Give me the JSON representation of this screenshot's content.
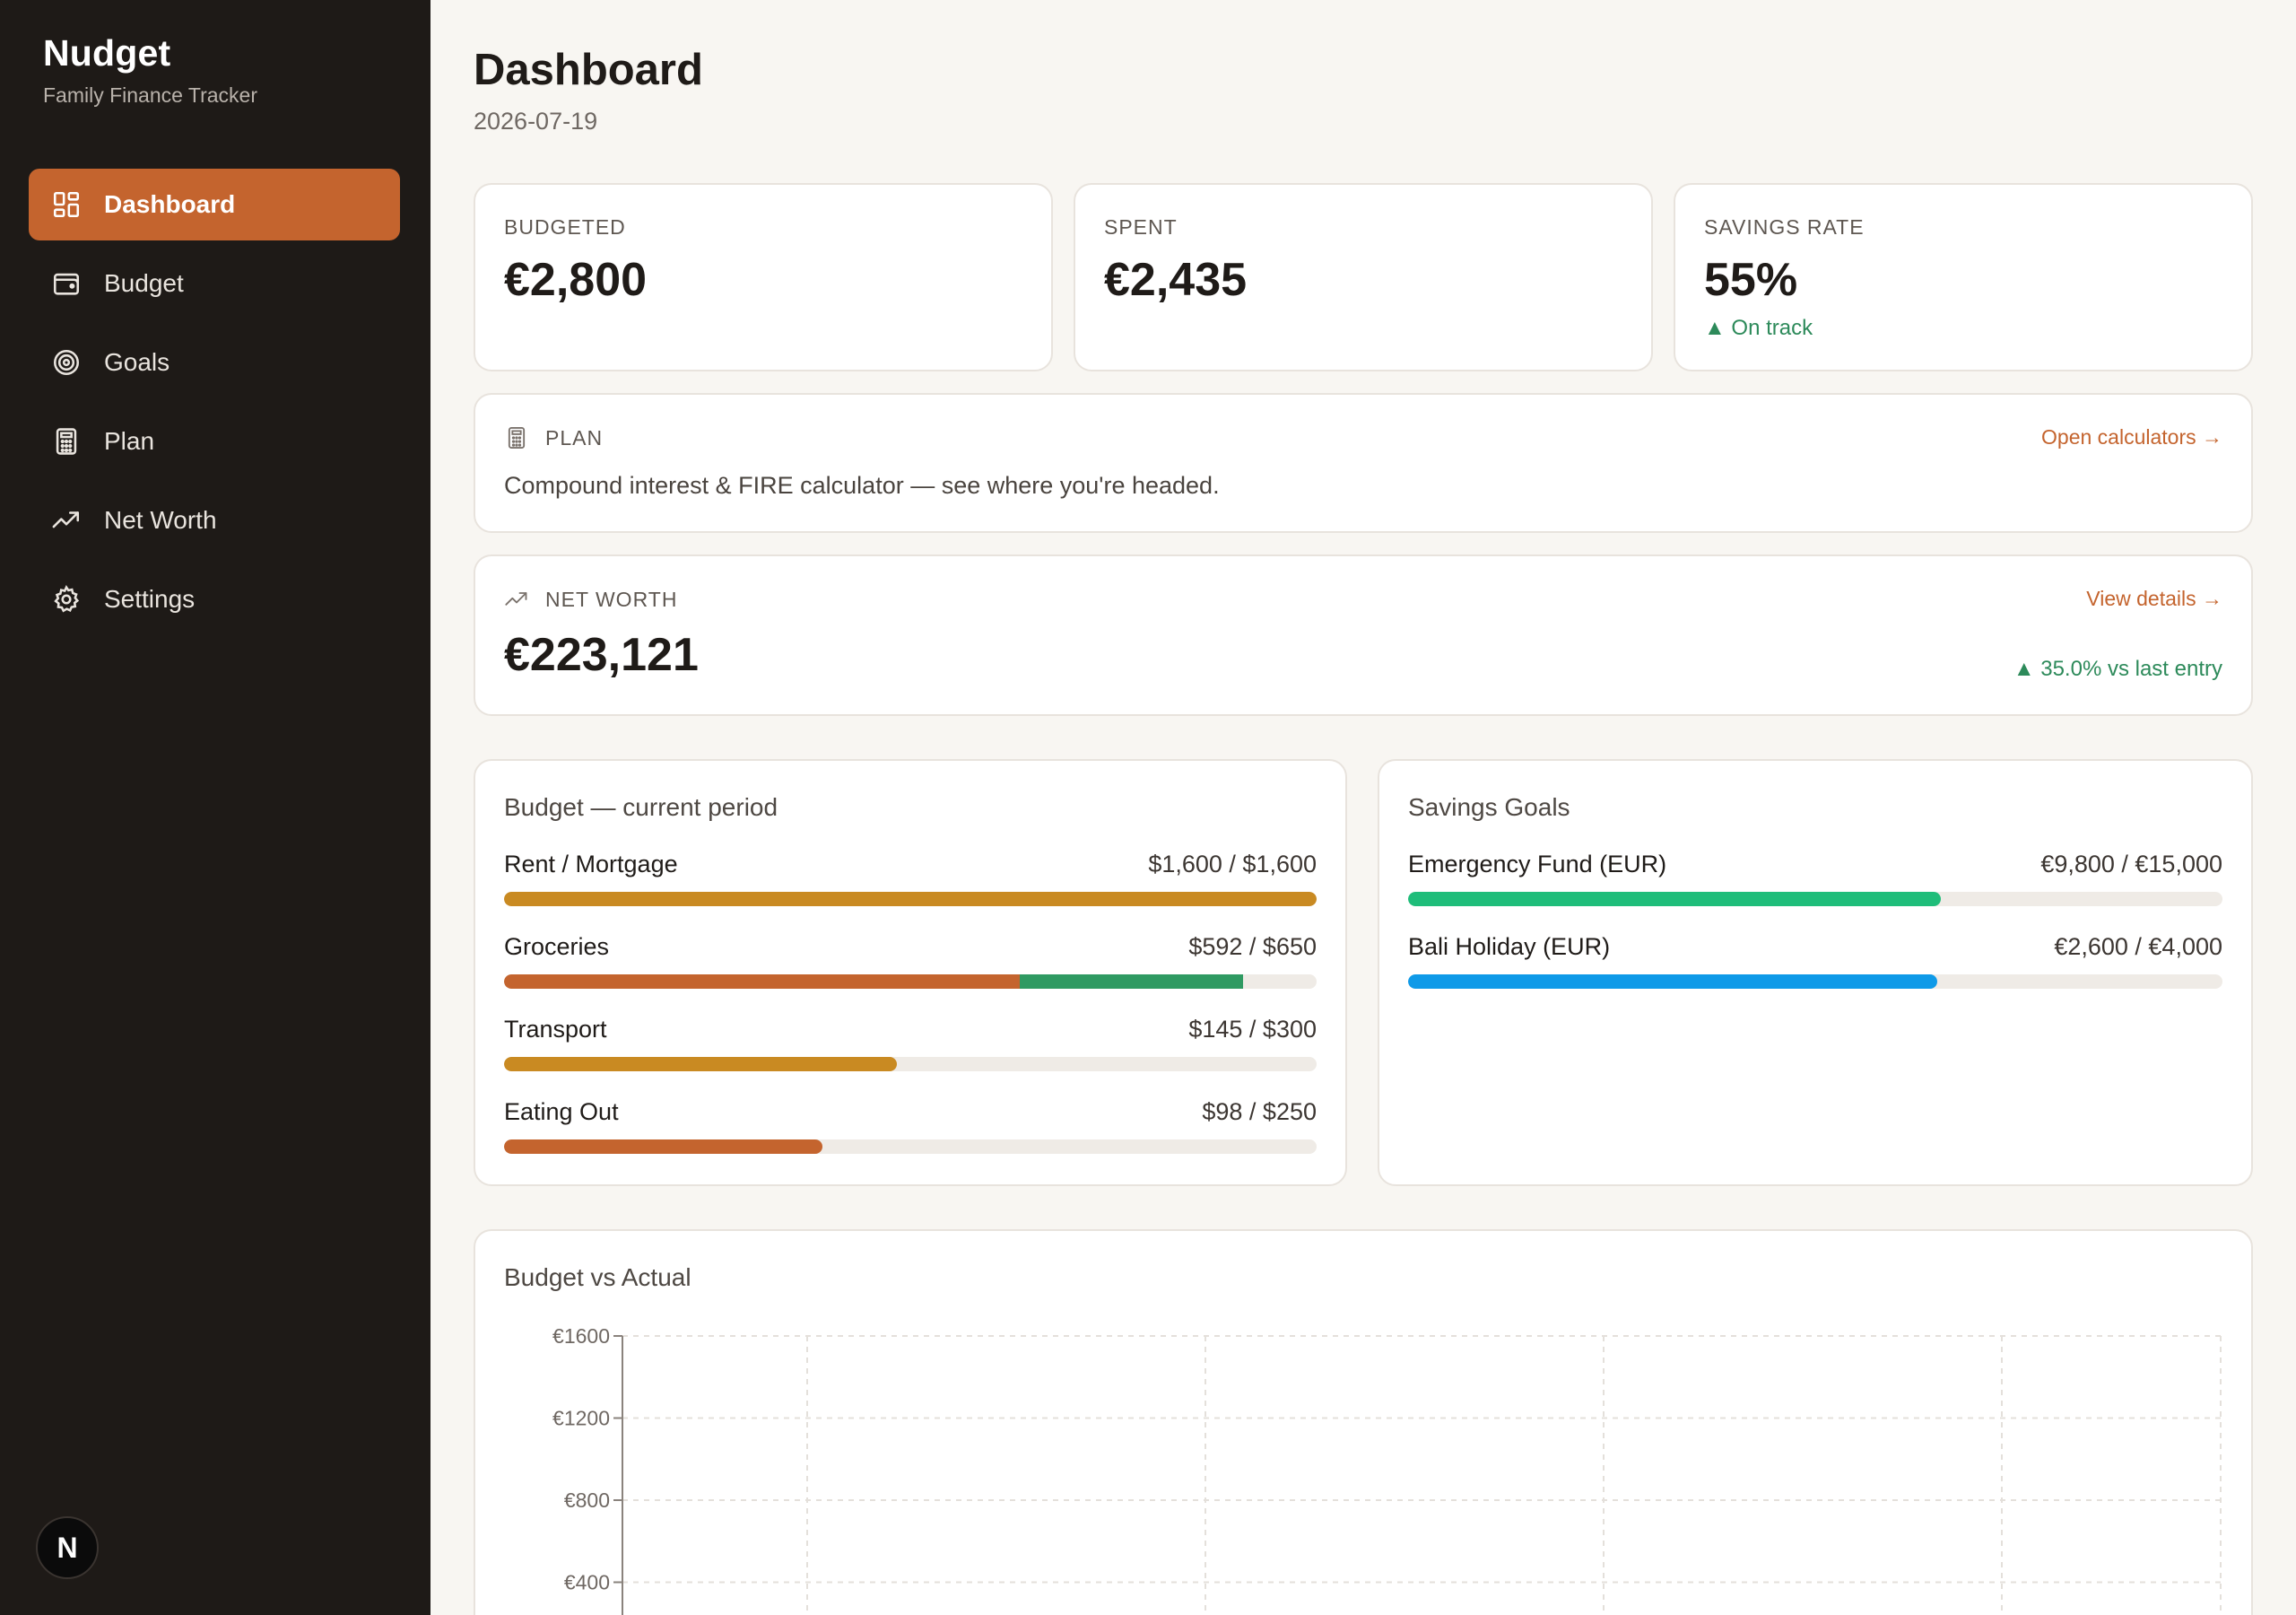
{
  "app": {
    "name": "Nudget",
    "subtitle": "Family Finance Tracker"
  },
  "sidebar": {
    "items": [
      {
        "label": "Dashboard",
        "icon": "dashboard-grid-icon",
        "active": true
      },
      {
        "label": "Budget",
        "icon": "wallet-icon",
        "active": false
      },
      {
        "label": "Goals",
        "icon": "target-icon",
        "active": false
      },
      {
        "label": "Plan",
        "icon": "calculator-icon",
        "active": false
      },
      {
        "label": "Net Worth",
        "icon": "trending-up-icon",
        "active": false
      },
      {
        "label": "Settings",
        "icon": "gear-icon",
        "active": false
      }
    ],
    "user_initial": "N"
  },
  "header": {
    "title": "Dashboard",
    "date": "2026-07-19"
  },
  "stats": {
    "budgeted": {
      "label": "BUDGETED",
      "value": "€2,800"
    },
    "spent": {
      "label": "SPENT",
      "value": "€2,435"
    },
    "savings_rate": {
      "label": "SAVINGS RATE",
      "value": "55%",
      "status": "▲ On track"
    }
  },
  "plan": {
    "label": "PLAN",
    "link": "Open calculators →",
    "description": "Compound interest & FIRE calculator — see where you're headed."
  },
  "net_worth": {
    "label": "NET WORTH",
    "link": "View details →",
    "value": "€223,121",
    "change": "▲ 35.0% vs last entry"
  },
  "budget_panel": {
    "title": "Budget — current period",
    "items": [
      {
        "name": "Rent / Mortgage",
        "value": "$1,600 / $1,600",
        "spent_fraction": 1.0,
        "color": "#c98a22",
        "extra_fraction": 0,
        "extra_color": ""
      },
      {
        "name": "Groceries",
        "value": "$592 / $650",
        "spent_fraction": 0.635,
        "color": "#c4642e",
        "extra_fraction": 0.275,
        "extra_color": "#2f9a62"
      },
      {
        "name": "Transport",
        "value": "$145 / $300",
        "spent_fraction": 0.483,
        "color": "#c98a22",
        "extra_fraction": 0,
        "extra_color": ""
      },
      {
        "name": "Eating Out",
        "value": "$98 / $250",
        "spent_fraction": 0.392,
        "color": "#c4642e",
        "extra_fraction": 0,
        "extra_color": ""
      }
    ]
  },
  "goals_panel": {
    "title": "Savings Goals",
    "items": [
      {
        "name": "Emergency Fund (EUR)",
        "value": "€9,800 / €15,000",
        "fraction": 0.654,
        "color": "#1fbd7a"
      },
      {
        "name": "Bali Holiday (EUR)",
        "value": "€2,600 / €4,000",
        "fraction": 0.65,
        "color": "#0f9ae8"
      }
    ]
  },
  "chart_data": {
    "type": "bar",
    "title": "Budget vs Actual",
    "y_ticks": [
      "€1600",
      "€1200",
      "€800",
      "€400"
    ],
    "y_tick_values": [
      1600,
      1200,
      800,
      400
    ],
    "ylim": [
      0,
      1600
    ],
    "grid": true,
    "categories": [],
    "series": []
  }
}
